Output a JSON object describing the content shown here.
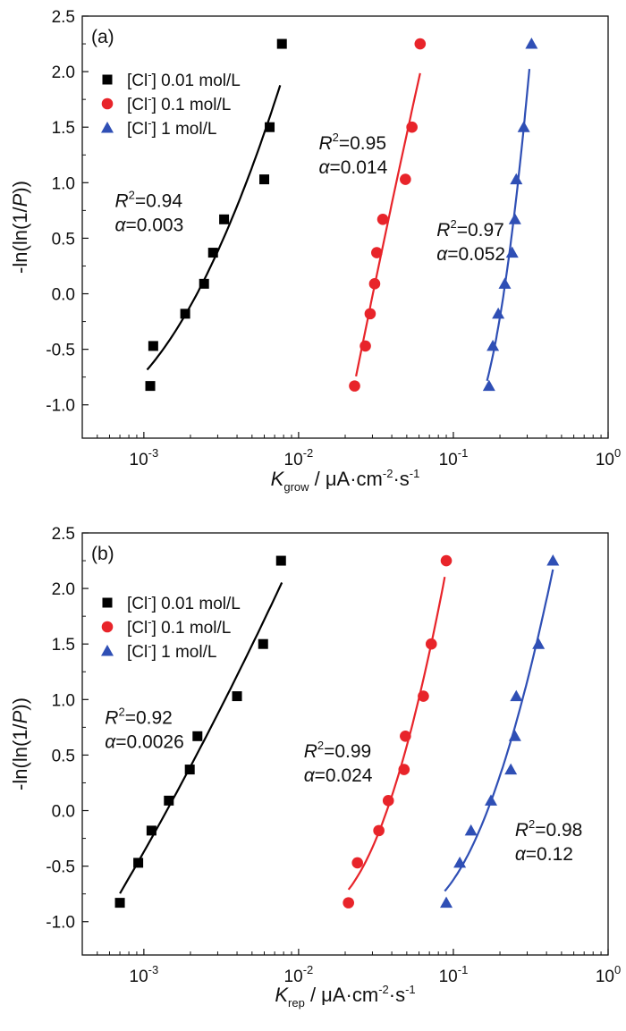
{
  "chart_data": [
    {
      "type": "scatter",
      "panel_label": "(a)",
      "xscale": "log",
      "xlim": [
        0.0004,
        1
      ],
      "ylim": [
        -1.3,
        2.5
      ],
      "x_ticks": [
        {
          "value": 0.001,
          "base": "10",
          "exp": "-3"
        },
        {
          "value": 0.01,
          "base": "10",
          "exp": "-2"
        },
        {
          "value": 0.1,
          "base": "10",
          "exp": "-1"
        },
        {
          "value": 1,
          "base": "10",
          "exp": "0"
        }
      ],
      "y_ticks": [
        "-1.0",
        "-0.5",
        "0.0",
        "0.5",
        "1.0",
        "1.5",
        "2.0",
        "2.5"
      ],
      "xlabel": {
        "main": "K",
        "sub": "grow",
        "rest": " / μA·cm",
        "exp1": "-2",
        "dot": "·s",
        "exp2": "-1"
      },
      "ylabel": "-ln(ln(1/P))",
      "series": [
        {
          "name": "0.01 mol/L",
          "legend": {
            "pre": "[Cl",
            "sup": "-",
            "post": "] 0.01 mol/L"
          },
          "marker": "square",
          "color": "#000000",
          "x": [
            0.0011,
            0.00115,
            0.00185,
            0.00245,
            0.0028,
            0.0033,
            0.006,
            0.0065,
            0.0078
          ],
          "y": [
            -0.83,
            -0.47,
            -0.18,
            0.09,
            0.37,
            0.67,
            1.03,
            1.5,
            2.25
          ],
          "fit": {
            "x_start": 0.00105,
            "x_end": 0.0076
          },
          "annotation": {
            "r2_label": "R",
            "r2_exp": "2",
            "r2_value": "=0.94",
            "alpha_symbol": "α",
            "alpha_value": "=0.003",
            "anchor_x": 0.00065,
            "anchor_y": 0.78
          }
        },
        {
          "name": "0.1 mol/L",
          "legend": {
            "pre": "[Cl",
            "sup": "-",
            "post": "] 0.1 mol/L"
          },
          "marker": "circle",
          "color": "#e8242a",
          "x": [
            0.023,
            0.027,
            0.029,
            0.031,
            0.032,
            0.035,
            0.049,
            0.054,
            0.061
          ],
          "y": [
            -0.83,
            -0.47,
            -0.18,
            0.09,
            0.37,
            0.67,
            1.03,
            1.5,
            2.25
          ],
          "fit": {
            "x_start": 0.0235,
            "x_end": 0.061
          },
          "annotation": {
            "r2_label": "R",
            "r2_exp": "2",
            "r2_value": "=0.95",
            "alpha_symbol": "α",
            "alpha_value": "=0.014",
            "anchor_x": 0.0135,
            "anchor_y": 1.3
          }
        },
        {
          "name": "1 mol/L",
          "legend": {
            "pre": "[Cl",
            "sup": "-",
            "post": "] 1 mol/L"
          },
          "marker": "triangle",
          "color": "#2f4fb5",
          "x": [
            0.17,
            0.18,
            0.195,
            0.215,
            0.24,
            0.25,
            0.255,
            0.285,
            0.32
          ],
          "y": [
            -0.83,
            -0.47,
            -0.18,
            0.09,
            0.37,
            0.67,
            1.03,
            1.5,
            2.25
          ],
          "fit": {
            "x_start": 0.165,
            "x_end": 0.31
          },
          "annotation": {
            "r2_label": "R",
            "r2_exp": "2",
            "r2_value": "=0.97",
            "alpha_symbol": "α",
            "alpha_value": "=0.052",
            "anchor_x": 0.078,
            "anchor_y": 0.52
          }
        }
      ]
    },
    {
      "type": "scatter",
      "panel_label": "(b)",
      "xscale": "log",
      "xlim": [
        0.0004,
        1
      ],
      "ylim": [
        -1.3,
        2.5
      ],
      "x_ticks": [
        {
          "value": 0.001,
          "base": "10",
          "exp": "-3"
        },
        {
          "value": 0.01,
          "base": "10",
          "exp": "-2"
        },
        {
          "value": 0.1,
          "base": "10",
          "exp": "-1"
        },
        {
          "value": 1,
          "base": "10",
          "exp": "0"
        }
      ],
      "y_ticks": [
        "-1.0",
        "-0.5",
        "0.0",
        "0.5",
        "1.0",
        "1.5",
        "2.0",
        "2.5"
      ],
      "xlabel": {
        "main": "K",
        "sub": "rep",
        "rest": " / μA·cm",
        "exp1": "-2",
        "dot": "·s",
        "exp2": "-1"
      },
      "ylabel": "-ln(ln(1/P))",
      "series": [
        {
          "name": "0.01 mol/L",
          "legend": {
            "pre": "[Cl",
            "sup": "-",
            "post": "] 0.01 mol/L"
          },
          "marker": "square",
          "color": "#000000",
          "x": [
            0.0007,
            0.00092,
            0.00112,
            0.00145,
            0.00198,
            0.00222,
            0.004,
            0.0059,
            0.0077
          ],
          "y": [
            -0.83,
            -0.47,
            -0.18,
            0.09,
            0.37,
            0.67,
            1.03,
            1.5,
            2.25
          ],
          "fit": {
            "x_start": 0.0007,
            "x_end": 0.0078
          },
          "annotation": {
            "r2_label": "R",
            "r2_exp": "2",
            "r2_value": "=0.92",
            "alpha_symbol": "α",
            "alpha_value": "=0.0026",
            "anchor_x": 0.00056,
            "anchor_y": 0.78
          }
        },
        {
          "name": "0.1 mol/L",
          "legend": {
            "pre": "[Cl",
            "sup": "-",
            "post": "] 0.1 mol/L"
          },
          "marker": "circle",
          "color": "#e8242a",
          "x": [
            0.021,
            0.024,
            0.033,
            0.038,
            0.048,
            0.049,
            0.064,
            0.072,
            0.09
          ],
          "y": [
            -0.83,
            -0.47,
            -0.18,
            0.09,
            0.37,
            0.67,
            1.03,
            1.5,
            2.25
          ],
          "fit": {
            "x_start": 0.021,
            "x_end": 0.088
          },
          "annotation": {
            "r2_label": "R",
            "r2_exp": "2",
            "r2_value": "=0.99",
            "alpha_symbol": "α",
            "alpha_value": "=0.024",
            "anchor_x": 0.0108,
            "anchor_y": 0.48
          }
        },
        {
          "name": "1 mol/L",
          "legend": {
            "pre": "[Cl",
            "sup": "-",
            "post": "] 1 mol/L"
          },
          "marker": "triangle",
          "color": "#2f4fb5",
          "x": [
            0.09,
            0.11,
            0.13,
            0.175,
            0.235,
            0.25,
            0.255,
            0.355,
            0.44
          ],
          "y": [
            -0.83,
            -0.47,
            -0.18,
            0.09,
            0.37,
            0.67,
            1.03,
            1.5,
            2.25
          ],
          "fit": {
            "x_start": 0.088,
            "x_end": 0.44
          },
          "annotation": {
            "r2_label": "R",
            "r2_exp": "2",
            "r2_value": "=0.98",
            "alpha_symbol": "α",
            "alpha_value": "=0.12",
            "anchor_x": 0.25,
            "anchor_y": -0.23
          }
        }
      ]
    }
  ]
}
